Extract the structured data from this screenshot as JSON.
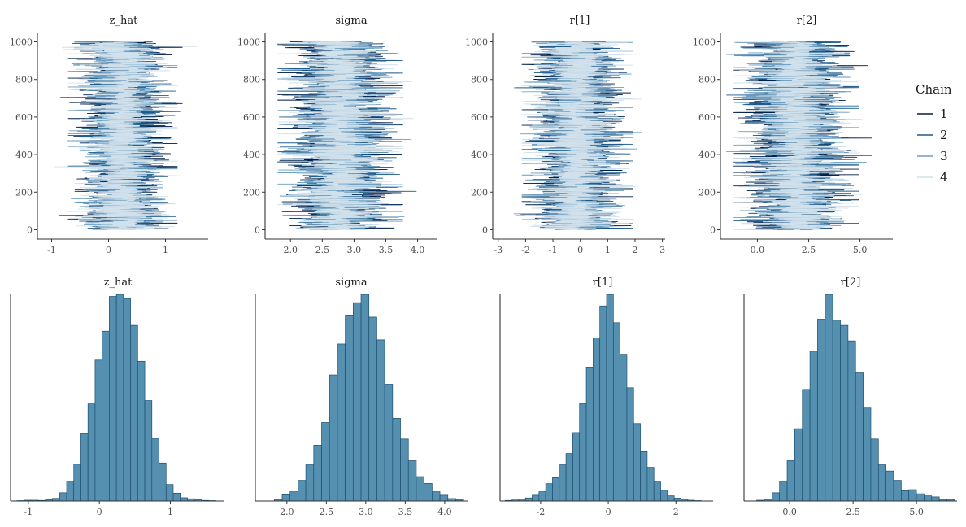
{
  "colors": {
    "chain_colors": [
      "#011f4b",
      "#1f5c8b",
      "#6f9fc0",
      "#d1e1ec"
    ],
    "hist_fill": "#5590b1",
    "hist_edge": "#1d4e6e"
  },
  "legend": {
    "title": "Chain",
    "labels": [
      "1",
      "2",
      "3",
      "4"
    ],
    "placement": "right"
  },
  "chart_data": [
    {
      "type": "line",
      "subtype": "trace",
      "title": "z_hat",
      "xlim": [
        -1.25,
        1.75
      ],
      "ylim": [
        -50,
        1050
      ],
      "x_ticks": [
        -1,
        0,
        1
      ],
      "x_tick_labels": [
        "-1",
        "0",
        "1"
      ],
      "y_ticks": [
        0,
        200,
        400,
        600,
        800,
        1000
      ],
      "y_tick_labels": [
        "0",
        "200",
        "400",
        "600",
        "800",
        "1000"
      ],
      "iterations": 1000,
      "chains": 4,
      "series_summary": {
        "mean": 0.25,
        "sd": 0.33,
        "min": -1.1,
        "max": 1.65
      }
    },
    {
      "type": "line",
      "subtype": "trace",
      "title": "sigma",
      "xlim": [
        1.6,
        4.3
      ],
      "ylim": [
        -50,
        1050
      ],
      "x_ticks": [
        2.0,
        2.5,
        3.0,
        3.5,
        4.0
      ],
      "x_tick_labels": [
        "2.0",
        "2.5",
        "3.0",
        "3.5",
        "4.0"
      ],
      "y_ticks": [
        0,
        200,
        400,
        600,
        800,
        1000
      ],
      "y_tick_labels": [
        "0",
        "200",
        "400",
        "600",
        "800",
        "1000"
      ],
      "iterations": 1000,
      "chains": 4,
      "series_summary": {
        "mean": 2.78,
        "sd": 0.34,
        "min": 1.8,
        "max": 4.2
      }
    },
    {
      "type": "line",
      "subtype": "trace",
      "title": "r[1]",
      "xlim": [
        -3.2,
        3.1
      ],
      "ylim": [
        -50,
        1050
      ],
      "x_ticks": [
        -3,
        -2,
        -1,
        0,
        1,
        2,
        3
      ],
      "x_tick_labels": [
        "-3",
        "-2",
        "-1",
        "0",
        "1",
        "2",
        "3"
      ],
      "y_ticks": [
        0,
        200,
        400,
        600,
        800,
        1000
      ],
      "y_tick_labels": [
        "0",
        "200",
        "400",
        "600",
        "800",
        "1000"
      ],
      "iterations": 1000,
      "chains": 4,
      "series_summary": {
        "mean": -0.1,
        "sd": 0.7,
        "min": -3.0,
        "max": 2.8
      }
    },
    {
      "type": "line",
      "subtype": "trace",
      "title": "r[2]",
      "xlim": [
        -1.8,
        6.6
      ],
      "ylim": [
        -50,
        1050
      ],
      "x_ticks": [
        0.0,
        2.5,
        5.0
      ],
      "x_tick_labels": [
        "0.0",
        "2.5",
        "5.0"
      ],
      "y_ticks": [
        0,
        200,
        400,
        600,
        800,
        1000
      ],
      "y_tick_labels": [
        "0",
        "200",
        "400",
        "600",
        "800",
        "1000"
      ],
      "iterations": 1000,
      "chains": 4,
      "series_summary": {
        "mean": 1.9,
        "sd": 1.05,
        "min": -1.5,
        "max": 6.5
      }
    },
    {
      "type": "bar",
      "subtype": "histogram",
      "title": "z_hat",
      "xlim": [
        -1.25,
        1.75
      ],
      "x_ticks": [
        -1,
        0,
        1
      ],
      "x_tick_labels": [
        "-1",
        "0",
        "1"
      ],
      "bin_edges": [
        -1.16,
        -1.06,
        -0.96,
        -0.86,
        -0.76,
        -0.66,
        -0.56,
        -0.46,
        -0.36,
        -0.26,
        -0.16,
        -0.06,
        0.04,
        0.14,
        0.24,
        0.34,
        0.44,
        0.54,
        0.64,
        0.74,
        0.84,
        0.94,
        1.04,
        1.14,
        1.24,
        1.34,
        1.44,
        1.54,
        1.64
      ],
      "counts": [
        2,
        4,
        4,
        3,
        6,
        13,
        40,
        92,
        178,
        325,
        470,
        682,
        822,
        990,
        1000,
        980,
        850,
        676,
        486,
        303,
        184,
        80,
        38,
        16,
        11,
        6,
        3,
        2
      ]
    },
    {
      "type": "bar",
      "subtype": "histogram",
      "title": "sigma",
      "xlim": [
        1.6,
        4.3
      ],
      "x_ticks": [
        2.0,
        2.5,
        3.0,
        3.5,
        4.0
      ],
      "x_tick_labels": [
        "2.0",
        "2.5",
        "3.0",
        "3.5",
        "4.0"
      ],
      "bin_edges": [
        1.84,
        1.94,
        2.04,
        2.14,
        2.24,
        2.34,
        2.44,
        2.54,
        2.64,
        2.74,
        2.84,
        2.94,
        3.04,
        3.14,
        3.24,
        3.34,
        3.44,
        3.54,
        3.64,
        3.74,
        3.84,
        3.94,
        4.04,
        4.14,
        4.24
      ],
      "counts": [
        8,
        30,
        45,
        100,
        175,
        270,
        380,
        610,
        760,
        900,
        960,
        1000,
        890,
        780,
        565,
        400,
        300,
        195,
        118,
        85,
        45,
        28,
        12,
        6
      ]
    },
    {
      "type": "bar",
      "subtype": "histogram",
      "title": "r[1]",
      "xlim": [
        -3.2,
        3.1
      ],
      "x_ticks": [
        -2,
        0,
        2
      ],
      "x_tick_labels": [
        "-2",
        "0",
        "2"
      ],
      "bin_edges": [
        -3.05,
        -2.85,
        -2.65,
        -2.45,
        -2.25,
        -2.05,
        -1.85,
        -1.65,
        -1.45,
        -1.25,
        -1.05,
        -0.85,
        -0.65,
        -0.45,
        -0.25,
        -0.05,
        0.15,
        0.35,
        0.55,
        0.75,
        0.95,
        1.15,
        1.35,
        1.55,
        1.75,
        1.95,
        2.15,
        2.35,
        2.55,
        2.75
      ],
      "counts": [
        3,
        5,
        9,
        15,
        28,
        45,
        84,
        113,
        175,
        230,
        331,
        472,
        648,
        790,
        944,
        1000,
        863,
        710,
        548,
        375,
        239,
        163,
        92,
        52,
        25,
        14,
        8,
        4,
        2
      ]
    },
    {
      "type": "bar",
      "subtype": "histogram",
      "title": "r[2]",
      "xlim": [
        -1.8,
        6.6
      ],
      "x_ticks": [
        0.0,
        2.5,
        5.0
      ],
      "x_tick_labels": [
        "0.0",
        "2.5",
        "5.0"
      ],
      "bin_edges": [
        -1.3,
        -1.0,
        -0.7,
        -0.4,
        -0.1,
        0.2,
        0.5,
        0.8,
        1.1,
        1.4,
        1.7,
        2.0,
        2.3,
        2.6,
        2.9,
        3.2,
        3.5,
        3.8,
        4.1,
        4.4,
        4.7,
        5.0,
        5.3,
        5.6,
        5.9,
        6.2,
        6.5
      ],
      "counts": [
        4,
        8,
        40,
        95,
        195,
        350,
        540,
        725,
        880,
        1000,
        875,
        850,
        775,
        620,
        450,
        300,
        175,
        145,
        100,
        50,
        55,
        35,
        25,
        20,
        8,
        8
      ]
    }
  ]
}
